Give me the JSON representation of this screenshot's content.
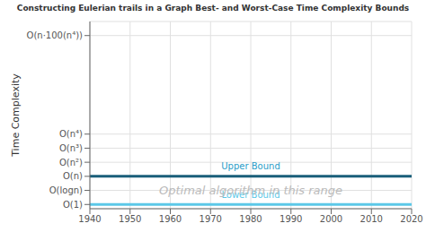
{
  "chart_data": {
    "type": "line",
    "title": "Constructing Eulerian trails in a Graph Best- and Worst-Case Time Complexity Bounds",
    "ylabel": "Time Complexity",
    "log": "y",
    "grid": true,
    "x": [
      1940,
      2020
    ],
    "xlim": [
      1940,
      2020
    ],
    "xticks": [
      1940,
      1950,
      1960,
      1970,
      1980,
      1990,
      2000,
      2010,
      2020
    ],
    "ylim": [
      0.5,
      10000000000000
    ],
    "yticks": [
      {
        "value": 1,
        "label": "O(1)"
      },
      {
        "value": 10,
        "label": "O(logn)"
      },
      {
        "value": 100,
        "label": "O(n)"
      },
      {
        "value": 1000,
        "label": "O(n²)"
      },
      {
        "value": 10000,
        "label": "O(n³)"
      },
      {
        "value": 100000,
        "label": "O(n⁴)"
      },
      {
        "value": 1000000000000,
        "label": "O(n·100(n⁴))"
      }
    ],
    "series": [
      {
        "name": "Upper Bound",
        "color": "#1a5f7a",
        "values": [
          100,
          100
        ]
      },
      {
        "name": "Lower Bound",
        "color": "#5bc8e8",
        "values": [
          1,
          1
        ]
      }
    ],
    "annotations": [
      {
        "text": "Upper Bound",
        "x": 1980,
        "y": 300,
        "color": "#2a9dc8"
      },
      {
        "text": "Lower Bound",
        "x": 1980,
        "y": 3,
        "color": "#5bc8e8"
      },
      {
        "text": "Optimal algorithm in this range",
        "x": 1980,
        "y": 10,
        "color": "#bbbbbb"
      }
    ]
  }
}
